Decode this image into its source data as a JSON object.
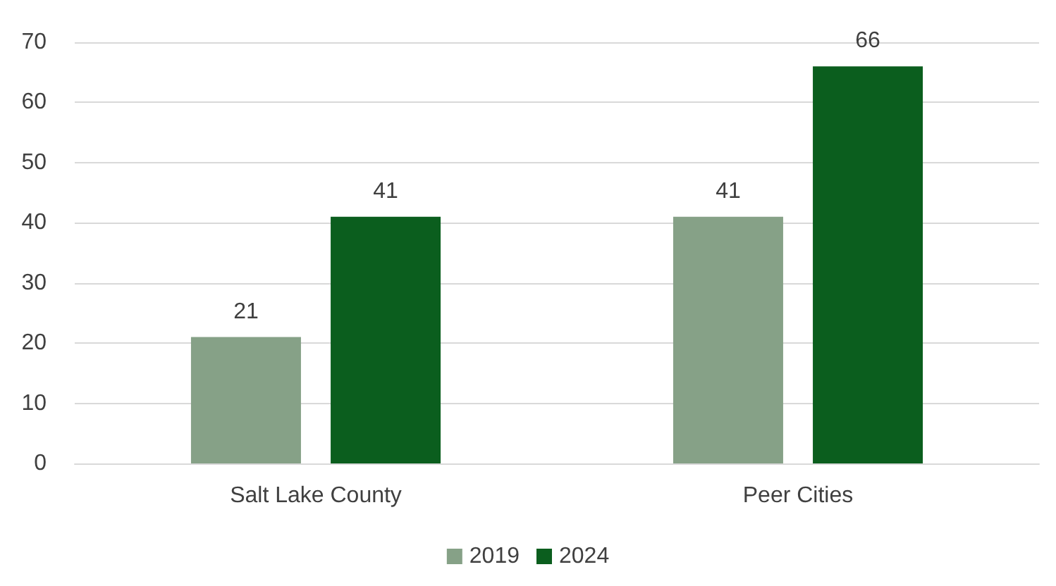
{
  "chart_data": {
    "type": "bar",
    "categories": [
      "Salt Lake County",
      "Peer Cities"
    ],
    "series": [
      {
        "name": "2019",
        "color": "#86a187",
        "values": [
          21,
          41
        ]
      },
      {
        "name": "2024",
        "color": "#0b5e1e",
        "values": [
          41,
          66
        ]
      }
    ],
    "ylim": [
      0,
      70
    ],
    "yticks": [
      0,
      10,
      20,
      30,
      40,
      50,
      60,
      70
    ],
    "grid": "y",
    "legend": "bottom",
    "data_labels": true
  }
}
